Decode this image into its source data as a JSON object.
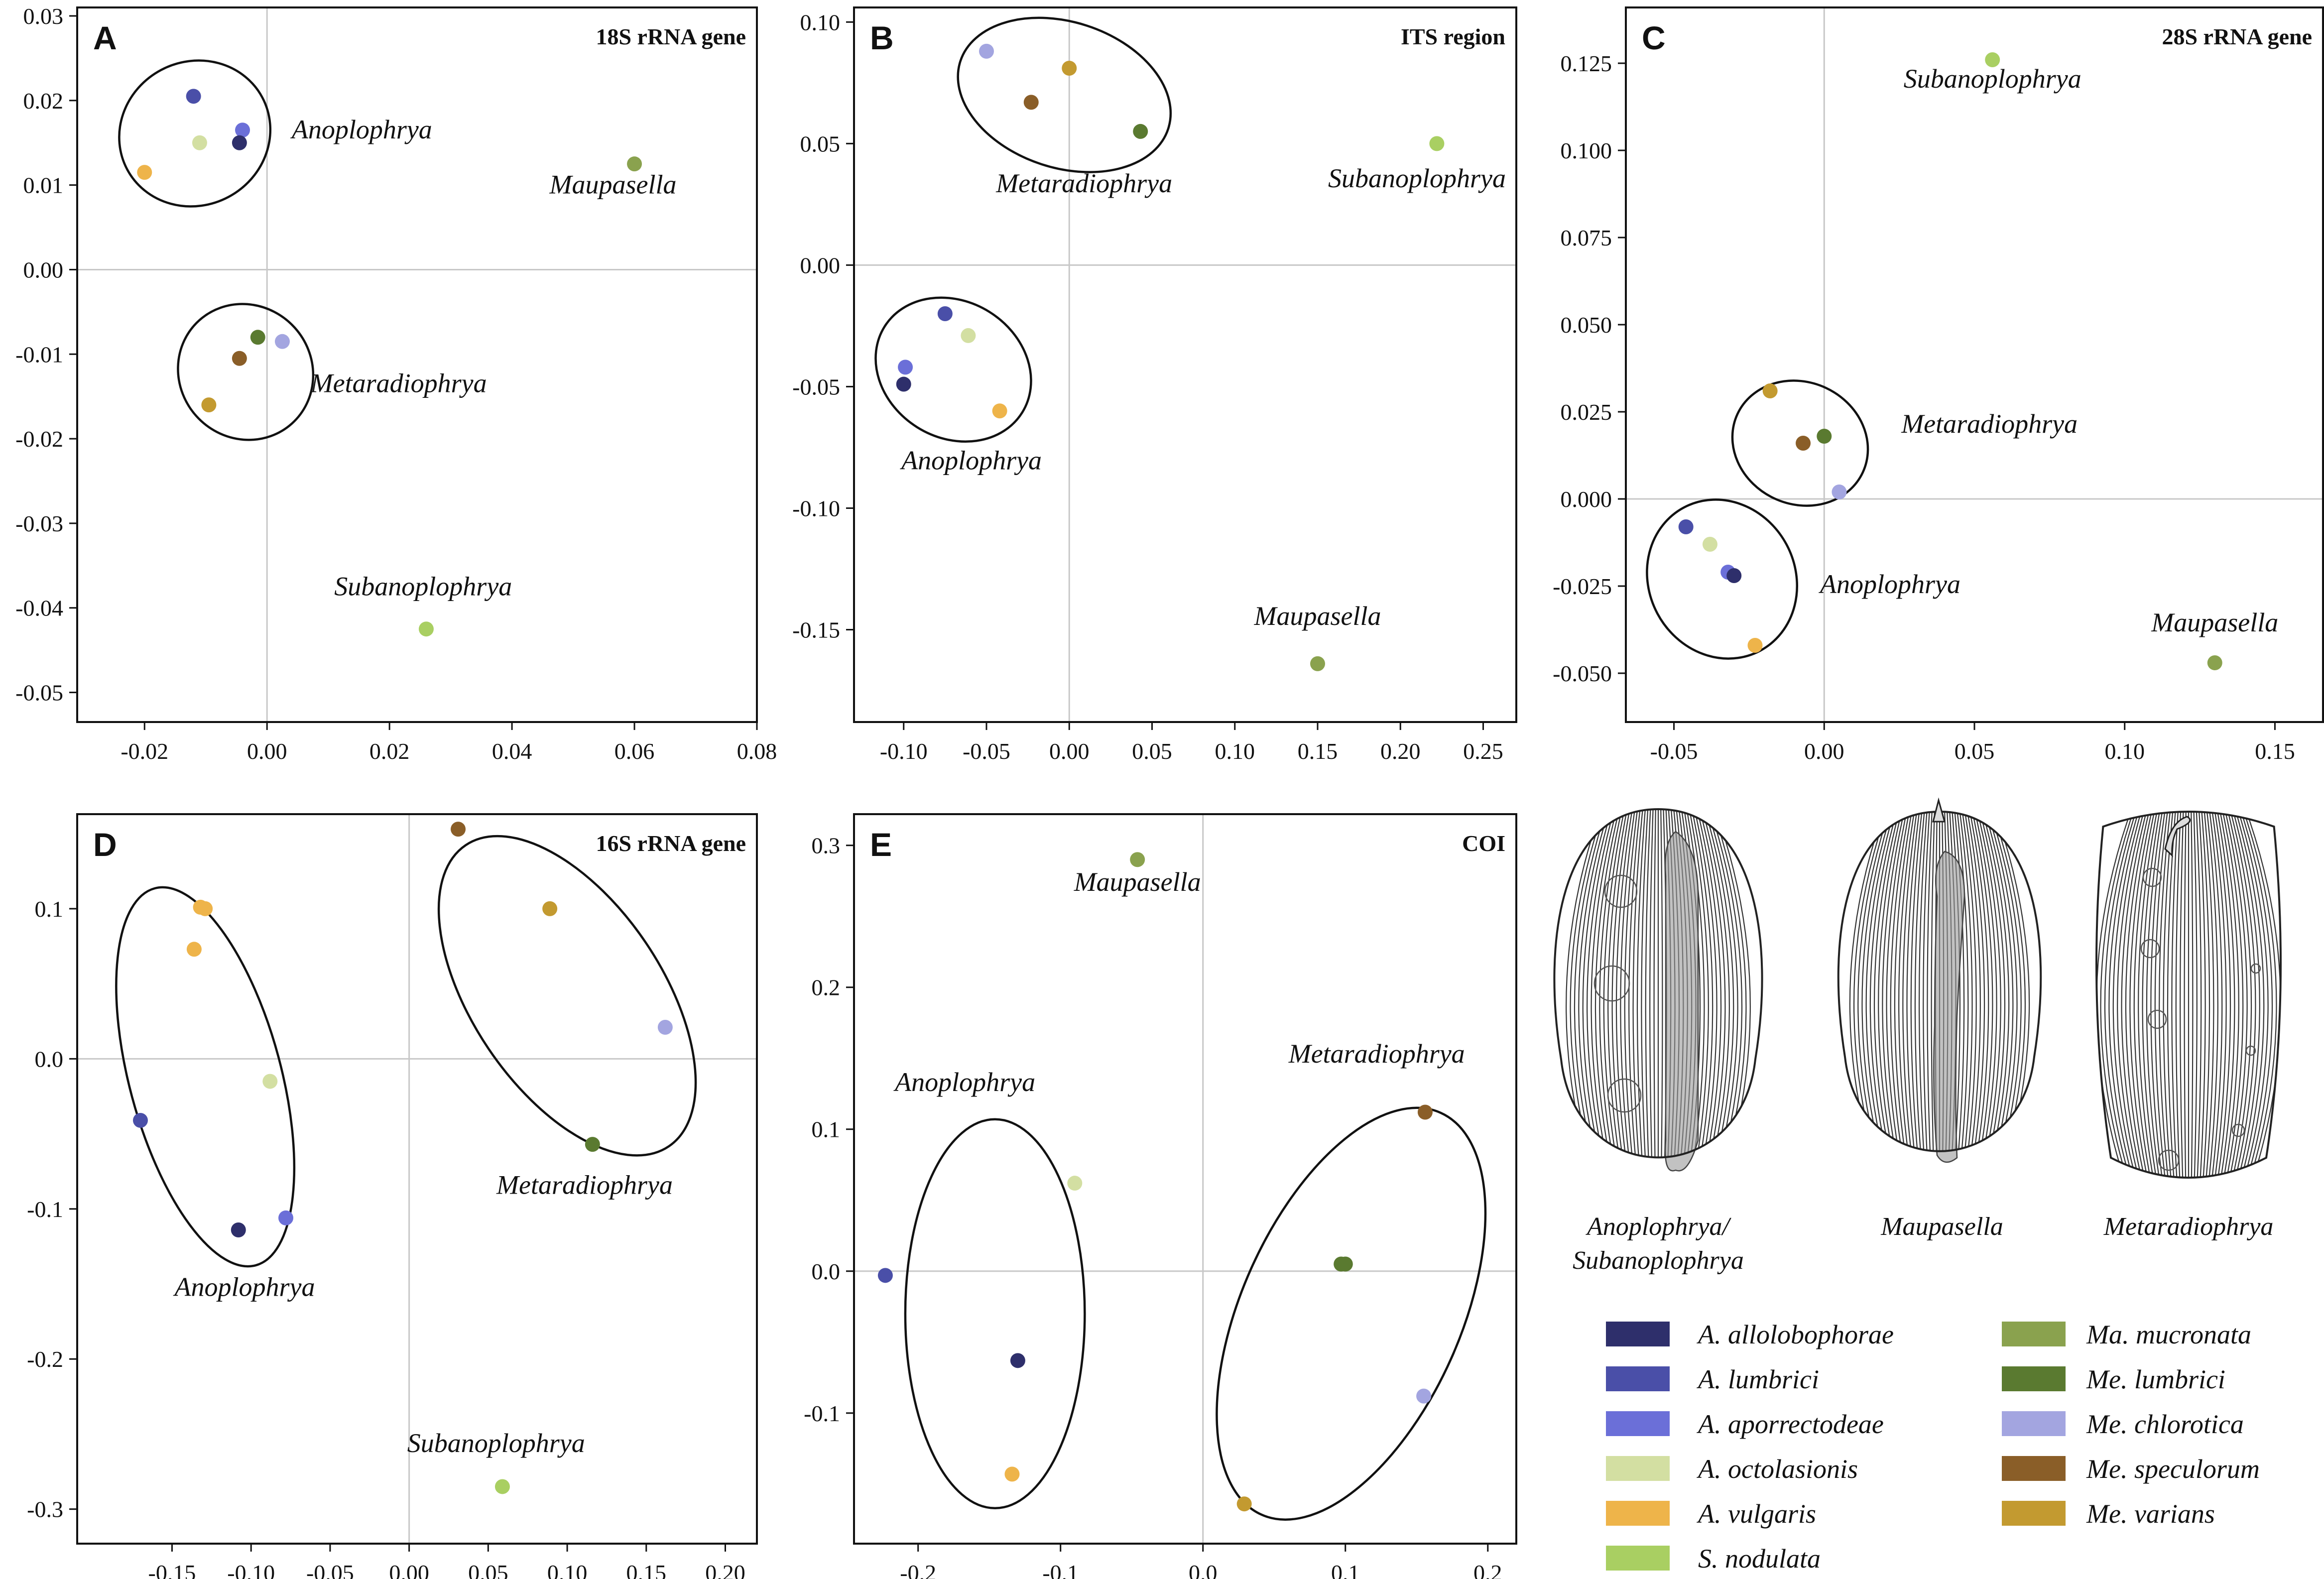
{
  "colors": {
    "A. allolobophorae": "#2e2f6b",
    "A. lumbrici": "#4a4fa8",
    "A. aporrectodeae": "#6b6fd8",
    "A. octolasionis": "#d3dfa2",
    "A. vulgaris": "#eeb44a",
    "S. nodulata": "#a9cf62",
    "Ma. mucronata": "#8aa24e",
    "Me. lumbrici": "#5a7a30",
    "Me. chlorotica": "#a3a5e0",
    "Me. speculorum": "#8a5e28",
    "Me. varians": "#c39a30"
  },
  "chart_data": [
    {
      "type": "scatter",
      "letter": "A",
      "title": "18S rRNA gene",
      "xlim": [
        -0.031,
        0.08
      ],
      "ylim": [
        -0.0535,
        0.031
      ],
      "xticks": [
        -0.02,
        0.0,
        0.02,
        0.04,
        0.06,
        0.08
      ],
      "xtick_labels": [
        "-0.02",
        "0.00",
        "0.02",
        "0.04",
        "0.06",
        "0.08"
      ],
      "yticks": [
        0.03,
        0.02,
        0.01,
        0.0,
        -0.01,
        -0.02,
        -0.03,
        -0.04,
        -0.05
      ],
      "ytick_labels": [
        "0.03",
        "0.02",
        "0.01",
        "0.00",
        "-0.01",
        "-0.02",
        "-0.03",
        "-0.04",
        "-0.05"
      ],
      "points": [
        {
          "species": "A. lumbrici",
          "x": -0.012,
          "y": 0.0205
        },
        {
          "species": "A. aporrectodeae",
          "x": -0.004,
          "y": 0.0165
        },
        {
          "species": "A. allolobophorae",
          "x": -0.0045,
          "y": 0.015
        },
        {
          "species": "A. octolasionis",
          "x": -0.011,
          "y": 0.015
        },
        {
          "species": "A. vulgaris",
          "x": -0.02,
          "y": 0.0115
        },
        {
          "species": "Ma. mucronata",
          "x": 0.06,
          "y": 0.0125
        },
        {
          "species": "Me. lumbrici",
          "x": -0.0015,
          "y": -0.008
        },
        {
          "species": "Me. chlorotica",
          "x": 0.0025,
          "y": -0.0085
        },
        {
          "species": "Me. speculorum",
          "x": -0.0045,
          "y": -0.0105
        },
        {
          "species": "Me. varians",
          "x": -0.0095,
          "y": -0.016
        },
        {
          "species": "S. nodulata",
          "x": 0.026,
          "y": -0.0425
        }
      ],
      "genus_labels": [
        {
          "text": "Anoplophrya",
          "x": 0.0155,
          "y": 0.0155
        },
        {
          "text": "Maupasella",
          "x": 0.0565,
          "y": 0.009
        },
        {
          "text": "Metaradiophrya",
          "x": 0.0215,
          "y": -0.0145
        },
        {
          "text": "Subanoplophrya",
          "x": 0.0255,
          "y": -0.0385
        }
      ],
      "ellipses": [
        {
          "cx": -0.0118,
          "cy": 0.0161,
          "rx": 0.0125,
          "ry": 0.0085,
          "angle": -28
        },
        {
          "cx": -0.0035,
          "cy": -0.0121,
          "rx": 0.0108,
          "ry": 0.0082,
          "angle": -42
        }
      ]
    },
    {
      "type": "scatter",
      "letter": "B",
      "title": "ITS region",
      "xlim": [
        -0.13,
        0.27
      ],
      "ylim": [
        -0.188,
        0.106
      ],
      "xticks": [
        -0.1,
        -0.05,
        0.0,
        0.05,
        0.1,
        0.15,
        0.2,
        0.25
      ],
      "xtick_labels": [
        "-0.10",
        "-0.05",
        "0.00",
        "0.05",
        "0.10",
        "0.15",
        "0.20",
        "0.25"
      ],
      "yticks": [
        0.1,
        0.05,
        0.0,
        -0.05,
        -0.1,
        -0.15
      ],
      "ytick_labels": [
        "0.10",
        "0.05",
        "0.00",
        "-0.05",
        "-0.10",
        "-0.15"
      ],
      "points": [
        {
          "species": "Me. chlorotica",
          "x": -0.05,
          "y": 0.088
        },
        {
          "species": "Me. varians",
          "x": 0.0,
          "y": 0.081
        },
        {
          "species": "Me. speculorum",
          "x": -0.023,
          "y": 0.067
        },
        {
          "species": "Me. lumbrici",
          "x": 0.043,
          "y": 0.055
        },
        {
          "species": "S. nodulata",
          "x": 0.222,
          "y": 0.05
        },
        {
          "species": "A. lumbrici",
          "x": -0.075,
          "y": -0.02
        },
        {
          "species": "A. octolasionis",
          "x": -0.061,
          "y": -0.029
        },
        {
          "species": "A. aporrectodeae",
          "x": -0.099,
          "y": -0.042
        },
        {
          "species": "A. allolobophorae",
          "x": -0.1,
          "y": -0.049
        },
        {
          "species": "A. vulgaris",
          "x": -0.042,
          "y": -0.06
        },
        {
          "species": "Ma. mucronata",
          "x": 0.15,
          "y": -0.164
        }
      ],
      "genus_labels": [
        {
          "text": "Metaradiophrya",
          "x": 0.009,
          "y": 0.03
        },
        {
          "text": "Subanoplophrya",
          "x": 0.21,
          "y": 0.032
        },
        {
          "text": "Anoplophrya",
          "x": -0.059,
          "y": -0.084
        },
        {
          "text": "Maupasella",
          "x": 0.15,
          "y": -0.148
        }
      ],
      "ellipses": [
        {
          "cx": -0.003,
          "cy": 0.07,
          "rx": 0.066,
          "ry": 0.03,
          "angle": 18
        },
        {
          "cx": -0.07,
          "cy": -0.043,
          "rx": 0.049,
          "ry": 0.028,
          "angle": 32
        }
      ]
    },
    {
      "type": "scatter",
      "letter": "C",
      "title": "28S rRNA gene",
      "xlim": [
        -0.066,
        0.166
      ],
      "ylim": [
        -0.064,
        0.141
      ],
      "xticks": [
        -0.05,
        0.0,
        0.05,
        0.1,
        0.15
      ],
      "xtick_labels": [
        "-0.05",
        "0.00",
        "0.05",
        "0.10",
        "0.15"
      ],
      "yticks": [
        0.125,
        0.1,
        0.075,
        0.05,
        0.025,
        0.0,
        -0.025,
        -0.05
      ],
      "ytick_labels": [
        "0.125",
        "0.100",
        "0.075",
        "0.050",
        "0.025",
        "0.000",
        "-0.025",
        "-0.050"
      ],
      "points": [
        {
          "species": "S. nodulata",
          "x": 0.056,
          "y": 0.126
        },
        {
          "species": "Me. varians",
          "x": -0.018,
          "y": 0.031
        },
        {
          "species": "Me. lumbrici",
          "x": 0.0,
          "y": 0.018
        },
        {
          "species": "Me. speculorum",
          "x": -0.007,
          "y": 0.016
        },
        {
          "species": "Me. chlorotica",
          "x": 0.005,
          "y": 0.002
        },
        {
          "species": "A. lumbrici",
          "x": -0.046,
          "y": -0.008
        },
        {
          "species": "A. octolasionis",
          "x": -0.038,
          "y": -0.013
        },
        {
          "species": "A. aporrectodeae",
          "x": -0.032,
          "y": -0.021
        },
        {
          "species": "A. allolobophorae",
          "x": -0.03,
          "y": -0.022
        },
        {
          "species": "A. vulgaris",
          "x": -0.023,
          "y": -0.042
        },
        {
          "species": "Ma. mucronata",
          "x": 0.13,
          "y": -0.047
        }
      ],
      "genus_labels": [
        {
          "text": "Subanoplophrya",
          "x": 0.056,
          "y": 0.118
        },
        {
          "text": "Metaradiophrya",
          "x": 0.055,
          "y": 0.019
        },
        {
          "text": "Anoplophrya",
          "x": 0.022,
          "y": -0.027
        },
        {
          "text": "Maupasella",
          "x": 0.13,
          "y": -0.038
        }
      ],
      "ellipses": [
        {
          "cx": -0.008,
          "cy": 0.016,
          "rx": 0.023,
          "ry": 0.0175,
          "angle": 25
        },
        {
          "cx": -0.034,
          "cy": -0.023,
          "rx": 0.027,
          "ry": 0.021,
          "angle": 62
        }
      ]
    },
    {
      "type": "scatter",
      "letter": "D",
      "title": "16S rRNA gene",
      "xlim": [
        -0.21,
        0.22
      ],
      "ylim": [
        -0.323,
        0.163
      ],
      "xticks": [
        -0.15,
        -0.1,
        -0.05,
        0.0,
        0.05,
        0.1,
        0.15,
        0.2
      ],
      "xtick_labels": [
        "-0.15",
        "-0.10",
        "-0.05",
        "0.00",
        "0.05",
        "0.10",
        "0.15",
        "0.20"
      ],
      "yticks": [
        0.1,
        0.0,
        -0.1,
        -0.2,
        -0.3
      ],
      "ytick_labels": [
        "0.1",
        "0.0",
        "-0.1",
        "-0.2",
        "-0.3"
      ],
      "points": [
        {
          "species": "A. vulgaris",
          "x": -0.132,
          "y": 0.101
        },
        {
          "species": "A. vulgaris",
          "x": -0.129,
          "y": 0.1
        },
        {
          "species": "A. vulgaris",
          "x": -0.136,
          "y": 0.073
        },
        {
          "species": "A. octolasionis",
          "x": -0.088,
          "y": -0.015
        },
        {
          "species": "A. lumbrici",
          "x": -0.17,
          "y": -0.041
        },
        {
          "species": "A. allolobophorae",
          "x": -0.108,
          "y": -0.114
        },
        {
          "species": "A. aporrectodeae",
          "x": -0.078,
          "y": -0.106
        },
        {
          "species": "Me. speculorum",
          "x": 0.031,
          "y": 0.153
        },
        {
          "species": "Me. varians",
          "x": 0.089,
          "y": 0.1
        },
        {
          "species": "Me. chlorotica",
          "x": 0.162,
          "y": 0.021
        },
        {
          "species": "Me. lumbrici",
          "x": 0.116,
          "y": -0.057
        },
        {
          "species": "S. nodulata",
          "x": 0.059,
          "y": -0.285
        }
      ],
      "genus_labels": [
        {
          "text": "Anoplophrya",
          "x": -0.104,
          "y": -0.158
        },
        {
          "text": "Metaradiophrya",
          "x": 0.111,
          "y": -0.09
        },
        {
          "text": "Subanoplophrya",
          "x": 0.055,
          "y": -0.262
        }
      ],
      "ellipses": [
        {
          "cx": -0.129,
          "cy": -0.012,
          "rx": 0.048,
          "ry": 0.13,
          "angle": -15
        },
        {
          "cx": 0.1,
          "cy": 0.042,
          "rx": 0.06,
          "ry": 0.121,
          "angle": -34
        }
      ]
    },
    {
      "type": "scatter",
      "letter": "E",
      "title": "COI",
      "xlim": [
        -0.245,
        0.22
      ],
      "ylim": [
        -0.192,
        0.322
      ],
      "xticks": [
        -0.2,
        -0.1,
        0.0,
        0.1,
        0.2
      ],
      "xtick_labels": [
        "-0.2",
        "-0.1",
        "0.0",
        "0.1",
        "0.2"
      ],
      "yticks": [
        0.3,
        0.2,
        0.1,
        0.0,
        -0.1
      ],
      "ytick_labels": [
        "0.3",
        "0.2",
        "0.1",
        "0.0",
        "-0.1"
      ],
      "points": [
        {
          "species": "Ma. mucronata",
          "x": -0.046,
          "y": 0.29
        },
        {
          "species": "A. octolasionis",
          "x": -0.09,
          "y": 0.062
        },
        {
          "species": "A. lumbrici",
          "x": -0.223,
          "y": -0.003
        },
        {
          "species": "A. allolobophorae",
          "x": -0.13,
          "y": -0.063
        },
        {
          "species": "A. vulgaris",
          "x": -0.134,
          "y": -0.143
        },
        {
          "species": "Me. speculorum",
          "x": 0.156,
          "y": 0.112
        },
        {
          "species": "Me. lumbrici",
          "x": 0.097,
          "y": 0.005
        },
        {
          "species": "Me. lumbrici",
          "x": 0.1,
          "y": 0.005
        },
        {
          "species": "Me. chlorotica",
          "x": 0.155,
          "y": -0.088
        },
        {
          "species": "Me. varians",
          "x": 0.029,
          "y": -0.164
        }
      ],
      "genus_labels": [
        {
          "text": "Maupasella",
          "x": -0.046,
          "y": 0.268
        },
        {
          "text": "Anoplophrya",
          "x": -0.167,
          "y": 0.127
        },
        {
          "text": "Metaradiophrya",
          "x": 0.122,
          "y": 0.147
        }
      ],
      "ellipses": [
        {
          "cx": -0.146,
          "cy": -0.03,
          "rx": 0.063,
          "ry": 0.137,
          "angle": 0
        },
        {
          "cx": 0.104,
          "cy": -0.03,
          "rx": 0.077,
          "ry": 0.155,
          "angle": 24
        }
      ]
    }
  ],
  "illustrations": {
    "captions": [
      "Anoplophrya/",
      "Subanoplophrya",
      "Maupasella",
      "Metaradiophrya"
    ]
  },
  "legend": {
    "left": [
      "A. allolobophorae",
      "A. lumbrici",
      "A. aporrectodeae",
      "A. octolasionis",
      "A. vulgaris",
      "S. nodulata"
    ],
    "right": [
      "Ma. mucronata",
      "Me. lumbrici",
      "Me. chlorotica",
      "Me. speculorum",
      "Me. varians"
    ]
  }
}
